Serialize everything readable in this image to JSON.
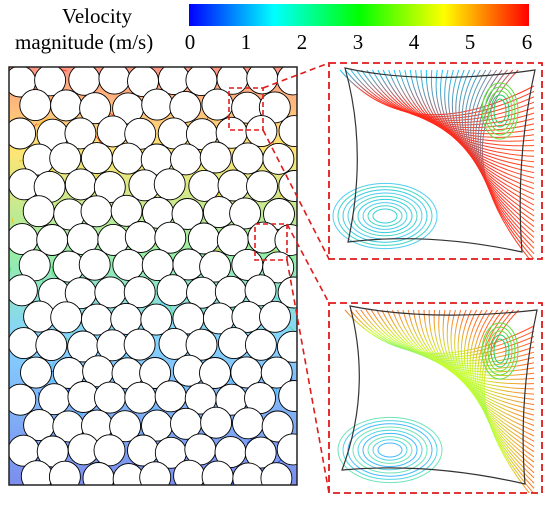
{
  "colorbar": {
    "title_line1": "Velocity",
    "title_line2": "magnitude (m/s)",
    "ticks": [
      "0",
      "1",
      "2",
      "3",
      "4",
      "5",
      "6"
    ],
    "min": 0,
    "max": 6,
    "colormap": [
      "#0000ff",
      "#0080ff",
      "#00ffff",
      "#00ff80",
      "#00ff00",
      "#80ff00",
      "#ffff00",
      "#ff8000",
      "#ff0000"
    ]
  },
  "colors": {
    "circle_fill": "#ffffff",
    "circle_stroke": "#000000",
    "zoom_box": "#e11a1a",
    "domain_border": "#222222"
  },
  "panels": {
    "packed_bed": "random circular particle packing with streamlines colored by velocity magnitude",
    "zoom_top": "enlarged pore between particles, upper region",
    "zoom_bottom": "enlarged pore between particles, middle region"
  }
}
